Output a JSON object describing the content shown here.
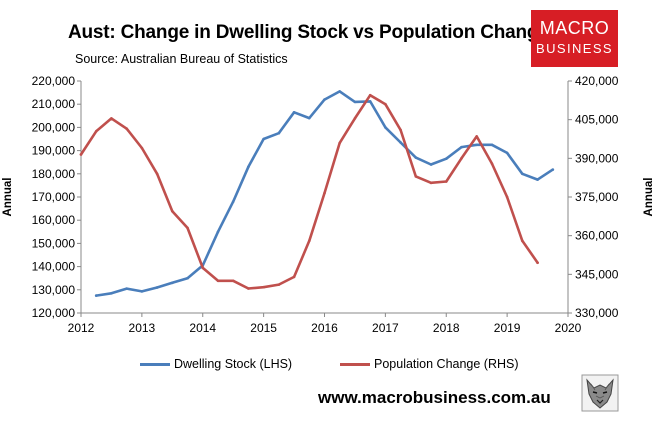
{
  "header": {
    "title": "Aust: Change in Dwelling Stock vs Population Change",
    "source": "Source: Australian Bureau of Statistics"
  },
  "logo": {
    "line1": "MACRO",
    "line2": "BUSINESS",
    "color": "#d71e25"
  },
  "footer": {
    "url": "www.macrobusiness.com.au",
    "icon": "wolf-icon"
  },
  "chart_data": {
    "type": "line",
    "title": "Aust: Change in Dwelling Stock vs Population Change",
    "xlabel": "",
    "ylabel_left": "Annual",
    "ylabel_right": "Annual",
    "x_ticks": [
      "2012",
      "2013",
      "2014",
      "2015",
      "2016",
      "2017",
      "2018",
      "2019",
      "2020"
    ],
    "x_range": [
      2012,
      2020
    ],
    "y_left": {
      "range": [
        120000,
        220000
      ],
      "ticks": [
        "120,000",
        "130,000",
        "140,000",
        "150,000",
        "160,000",
        "170,000",
        "180,000",
        "190,000",
        "200,000",
        "210,000",
        "220,000"
      ]
    },
    "y_right": {
      "range": [
        330000,
        420000
      ],
      "ticks": [
        "330,000",
        "345,000",
        "360,000",
        "375,000",
        "390,000",
        "405,000",
        "420,000"
      ]
    },
    "grid": false,
    "legend_position": "bottom",
    "series": [
      {
        "name": "Dwelling Stock (LHS)",
        "axis": "left",
        "color": "#4a7ebb",
        "x": [
          2012.25,
          2012.5,
          2012.75,
          2013.0,
          2013.25,
          2013.5,
          2013.75,
          2014.0,
          2014.25,
          2014.5,
          2014.75,
          2015.0,
          2015.25,
          2015.5,
          2015.75,
          2016.0,
          2016.25,
          2016.5,
          2016.75,
          2017.0,
          2017.25,
          2017.5,
          2017.75,
          2018.0,
          2018.25,
          2018.5,
          2018.75,
          2019.0,
          2019.25,
          2019.5,
          2019.75
        ],
        "values": [
          127500,
          128500,
          130500,
          129300,
          131000,
          133000,
          135000,
          140500,
          155000,
          168000,
          183000,
          195000,
          197500,
          206500,
          204000,
          212000,
          215500,
          211000,
          211200,
          200000,
          193500,
          187000,
          184000,
          186500,
          191500,
          192500,
          192500,
          189000,
          180000,
          177500,
          181800
        ]
      },
      {
        "name": "Population Change (RHS)",
        "axis": "right",
        "color": "#c0504d",
        "x": [
          2012.0,
          2012.25,
          2012.5,
          2012.75,
          2013.0,
          2013.25,
          2013.5,
          2013.75,
          2014.0,
          2014.25,
          2014.5,
          2014.75,
          2015.0,
          2015.25,
          2015.5,
          2015.75,
          2016.0,
          2016.25,
          2016.5,
          2016.75,
          2017.0,
          2017.25,
          2017.5,
          2017.75,
          2018.0,
          2018.25,
          2018.5,
          2018.75,
          2019.0,
          2019.25,
          2019.5
        ],
        "values": [
          391500,
          400500,
          405500,
          401500,
          394000,
          384000,
          369500,
          363000,
          347500,
          342500,
          342500,
          339500,
          340000,
          341000,
          344000,
          358000,
          376500,
          396000,
          405500,
          414500,
          411000,
          401000,
          383000,
          380500,
          381000,
          390000,
          398500,
          388000,
          375000,
          358000,
          349500
        ]
      }
    ]
  }
}
